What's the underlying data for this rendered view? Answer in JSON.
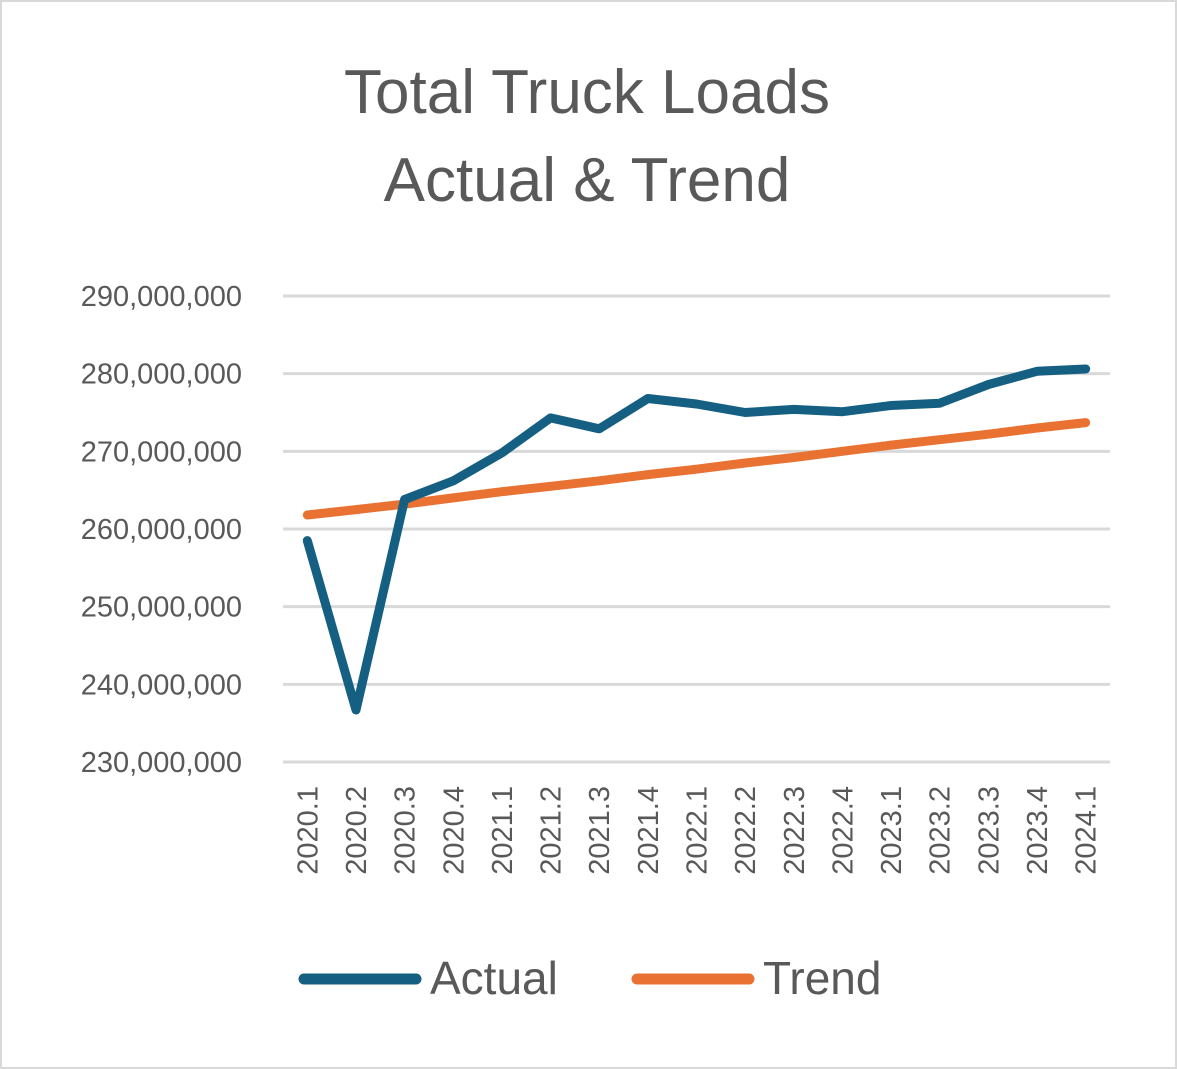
{
  "chart_data": {
    "type": "line",
    "title_lines": [
      "Total Truck Loads",
      "Actual & Trend"
    ],
    "categories": [
      "2020.1",
      "2020.2",
      "2020.3",
      "2020.4",
      "2021.1",
      "2021.2",
      "2021.3",
      "2021.4",
      "2022.1",
      "2022.2",
      "2022.3",
      "2022.4",
      "2023.1",
      "2023.2",
      "2023.3",
      "2023.4",
      "2024.1"
    ],
    "yticks": [
      "230,000,000",
      "240,000,000",
      "250,000,000",
      "260,000,000",
      "270,000,000",
      "280,000,000",
      "290,000,000"
    ],
    "ylim": [
      230000000,
      290000000
    ],
    "grid": true,
    "legend_position": "bottom",
    "series": [
      {
        "name": "Actual",
        "color": "#156082",
        "values": [
          258500000,
          236700000,
          263800000,
          266200000,
          269800000,
          274300000,
          272900000,
          276800000,
          276100000,
          275000000,
          275400000,
          275100000,
          275900000,
          276200000,
          278600000,
          280300000,
          280600000
        ]
      },
      {
        "name": "Trend",
        "color": "#e97132",
        "values": [
          261800000,
          262500000,
          263200000,
          264000000,
          264800000,
          265500000,
          266200000,
          267000000,
          267700000,
          268500000,
          269200000,
          270000000,
          270800000,
          271500000,
          272200000,
          273000000,
          273700000
        ]
      }
    ]
  }
}
